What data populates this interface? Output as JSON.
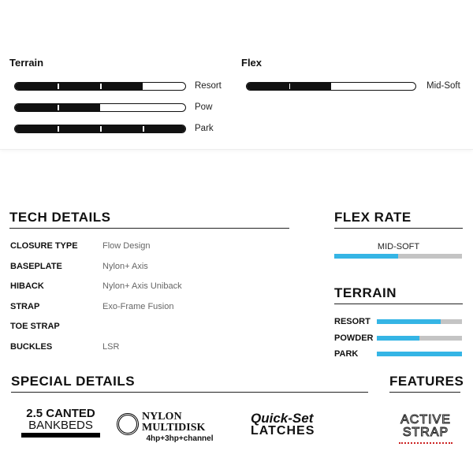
{
  "summary": {
    "terrain": {
      "title": "Terrain",
      "items": [
        {
          "label": "Resort",
          "level": 0.75
        },
        {
          "label": "Pow",
          "level": 0.5
        },
        {
          "label": "Park",
          "level": 1.0
        }
      ]
    },
    "flex": {
      "title": "Flex",
      "label": "Mid-Soft",
      "level": 0.5
    }
  },
  "tech_details": {
    "title": "TECH DETAILS",
    "rows": [
      {
        "key": "CLOSURE TYPE",
        "value": "Flow Design"
      },
      {
        "key": "BASEPLATE",
        "value": "Nylon+ Axis"
      },
      {
        "key": "HIBACK",
        "value": "Nylon+ Axis Uniback"
      },
      {
        "key": "STRAP",
        "value": "Exo-Frame Fusion"
      },
      {
        "key": "TOE STRAP",
        "value": ""
      },
      {
        "key": "BUCKLES",
        "value": "LSR"
      }
    ]
  },
  "flex_rate": {
    "title": "FLEX RATE",
    "label": "MID-SOFT",
    "level": 0.5
  },
  "terrain": {
    "title": "TERRAIN",
    "items": [
      {
        "label": "RESORT",
        "level": 0.75
      },
      {
        "label": "POWDER",
        "level": 0.5
      },
      {
        "label": "PARK",
        "level": 1.0
      }
    ]
  },
  "special_details": {
    "title": "SPECIAL DETAILS",
    "logos": [
      {
        "line1": "2.5 CANTED",
        "line2": "BANKBEDS"
      },
      {
        "line1": "NYLON",
        "line2": "MULTIDISK",
        "line3": "4hp+3hp+channel"
      },
      {
        "line1": "Quick-Set",
        "line2": "LATCHES"
      }
    ]
  },
  "features": {
    "title": "FEATURES",
    "logos": [
      {
        "line1": "ACTIVE",
        "line2": "STRAP"
      }
    ]
  },
  "colors": {
    "accent": "#35b5e5",
    "track": "#c4c4c4"
  }
}
